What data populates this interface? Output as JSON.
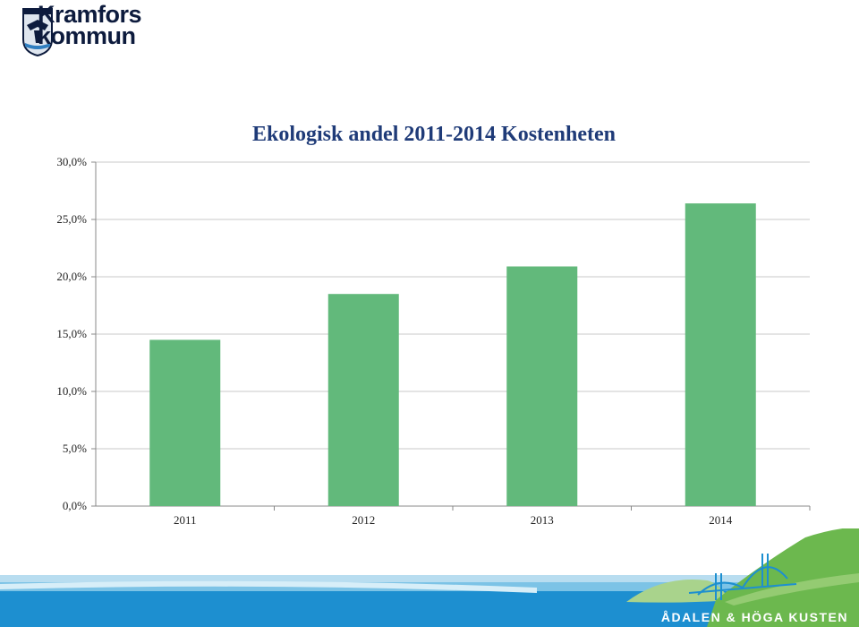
{
  "brand": {
    "name_line1": "Kramfors",
    "name_line2": "kommun",
    "footer_text": "ÅDALEN & HÖGA KUSTEN",
    "colors": {
      "logo_text": "#0d1b3d",
      "title": "#1f3b78",
      "bar": "#62b97b",
      "footer_blue": "#1d8fd0",
      "footer_green": "#6cb84e"
    }
  },
  "chart_data": {
    "type": "bar",
    "title": "Ekologisk andel 2011-2014 Kostenheten",
    "categories": [
      "2011",
      "2012",
      "2013",
      "2014"
    ],
    "values": [
      14.5,
      18.5,
      20.9,
      26.4
    ],
    "ylim": [
      0,
      30
    ],
    "yticks": [
      "0,0%",
      "5,0%",
      "10,0%",
      "15,0%",
      "20,0%",
      "25,0%",
      "30,0%"
    ],
    "ytick_values": [
      0,
      5,
      10,
      15,
      20,
      25,
      30
    ],
    "xlabel": "",
    "ylabel": "",
    "grid": true,
    "legend": "none"
  }
}
